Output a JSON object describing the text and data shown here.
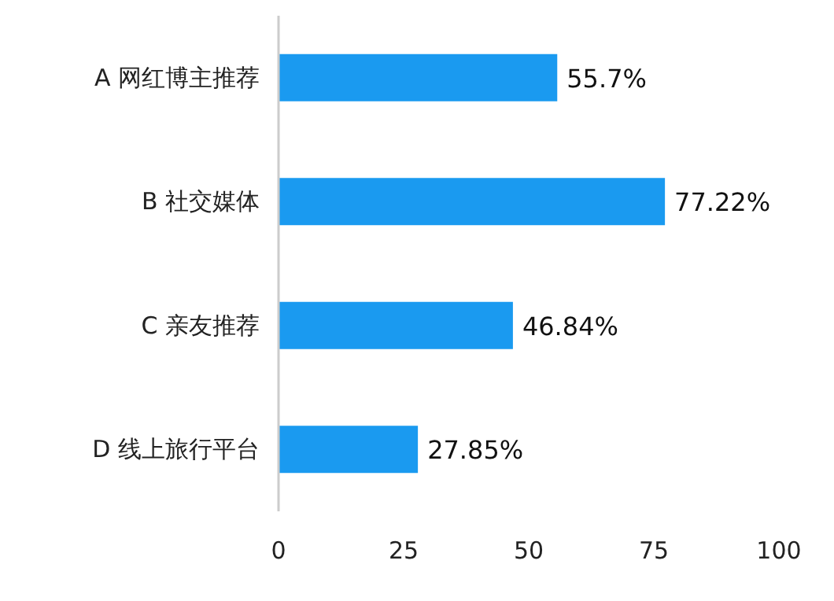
{
  "chart_data": {
    "type": "bar",
    "orientation": "horizontal",
    "categories": [
      "A 网红博主推荐",
      "B 社交媒体",
      "C 亲友推荐",
      "D 线上旅行平台"
    ],
    "values": [
      55.7,
      77.22,
      46.84,
      27.85
    ],
    "value_labels": [
      "55.7%",
      "77.22%",
      "46.84%",
      "27.85%"
    ],
    "color": "#1a9af0",
    "xlim": [
      0,
      100
    ],
    "xticks": [
      0,
      25,
      50,
      75,
      100
    ],
    "grid": false
  }
}
